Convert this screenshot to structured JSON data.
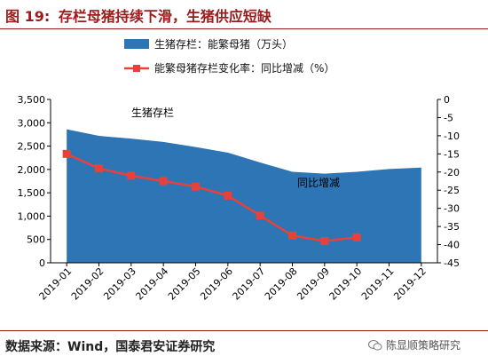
{
  "header": {
    "figure_label": "图 19:",
    "title": "存栏母猪持续下滑，生猪供应短缺"
  },
  "footer": {
    "source": "数据来源：Wind，国泰君安证券研究",
    "watermark": "陈显顺策略研究"
  },
  "chart_data": {
    "type": "area",
    "title": "",
    "categories": [
      "2019-01",
      "2019-02",
      "2019-03",
      "2019-04",
      "2019-05",
      "2019-06",
      "2019-07",
      "2019-08",
      "2019-09",
      "2019-10",
      "2019-11",
      "2019-12"
    ],
    "left_axis": {
      "label": "",
      "ylim": [
        0,
        3500
      ],
      "ticks": [
        0,
        500,
        1000,
        1500,
        2000,
        2500,
        3000,
        3500
      ],
      "tick_labels": [
        "0",
        "500",
        "1,000",
        "1,500",
        "2,000",
        "2,500",
        "3,000",
        "3,500"
      ]
    },
    "right_axis": {
      "label": "",
      "ylim": [
        -45,
        0
      ],
      "ticks": [
        0,
        -5,
        -10,
        -15,
        -20,
        -25,
        -30,
        -35,
        -40,
        -45
      ],
      "tick_labels": [
        "0",
        "-5",
        "-10",
        "-15",
        "-20",
        "-25",
        "-30",
        "-35",
        "-40",
        "-45"
      ]
    },
    "grid": false,
    "legend_position": "top",
    "series": [
      {
        "name": "生猪存栏：能繁母猪（万头）",
        "type": "area",
        "axis": "left",
        "color": "#2e75b6",
        "values": [
          2860,
          2720,
          2660,
          2590,
          2480,
          2360,
          2150,
          1950,
          1910,
          1950,
          2010,
          2040
        ]
      },
      {
        "name": "能繁母猪存栏变化率：同比增减（%）",
        "type": "line",
        "axis": "right",
        "color": "#e8413c",
        "values": [
          -15,
          -19,
          -21,
          -22.5,
          -24,
          -26.5,
          -32,
          -37.5,
          -39,
          -38,
          null,
          null
        ]
      }
    ],
    "annotations": [
      {
        "text": "生猪存栏"
      },
      {
        "text": "同比增减"
      }
    ]
  }
}
